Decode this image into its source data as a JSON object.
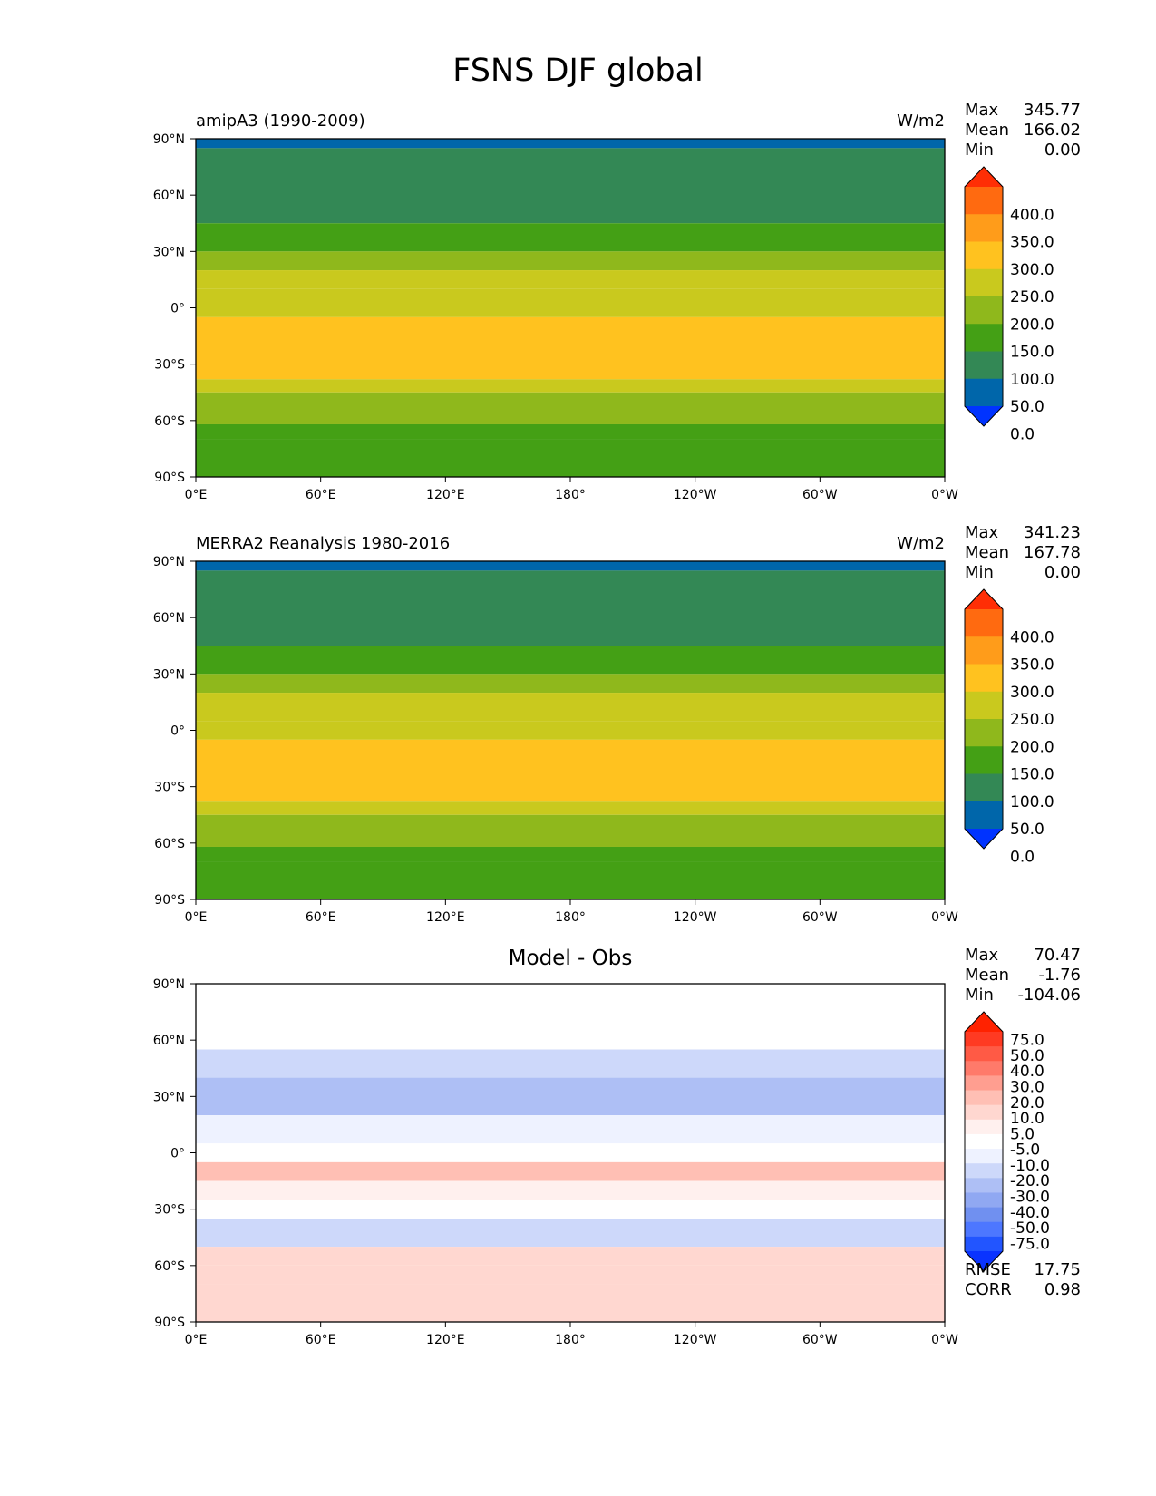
{
  "page_title": "FSNS DJF global",
  "lat_ticks": [
    "90°N",
    "60°N",
    "30°N",
    "0°",
    "30°S",
    "60°S",
    "90°S"
  ],
  "lon_ticks": [
    "0°E",
    "60°E",
    "120°E",
    "180°",
    "120°W",
    "60°W",
    "0°W"
  ],
  "colors": {
    "field_levels": [
      "#0033ff",
      "#0066aa",
      "#338855",
      "#44a015",
      "#8fb81c",
      "#c9c91e",
      "#ffc21f",
      "#ff9c1a",
      "#ff6a10",
      "#ff2e05"
    ],
    "diff_levels": [
      "#0a33ff",
      "#2255ff",
      "#4d77ff",
      "#7090f0",
      "#90a8f2",
      "#aebff5",
      "#cdd8fa",
      "#eef2ff",
      "#ffffff",
      "#fff0ee",
      "#ffd7d0",
      "#ffbfb4",
      "#ff9e90",
      "#ff7a6a",
      "#ff5a45",
      "#ff3a22",
      "#ff2200"
    ]
  },
  "panels": [
    {
      "title_left": "amipA3 (1990-2009)",
      "units": "W/m2",
      "stats": [
        {
          "label": "Max",
          "value": "345.77"
        },
        {
          "label": "Mean",
          "value": "166.02"
        },
        {
          "label": "Min",
          "value": "0.00"
        }
      ],
      "colorbar_labels": [
        "400.0",
        "350.0",
        "300.0",
        "250.0",
        "200.0",
        "150.0",
        "100.0",
        "50.0",
        "0.0"
      ]
    },
    {
      "title_left": "MERRA2 Reanalysis 1980-2016",
      "units": "W/m2",
      "stats": [
        {
          "label": "Max",
          "value": "341.23"
        },
        {
          "label": "Mean",
          "value": "167.78"
        },
        {
          "label": "Min",
          "value": "0.00"
        }
      ],
      "colorbar_labels": [
        "400.0",
        "350.0",
        "300.0",
        "250.0",
        "200.0",
        "150.0",
        "100.0",
        "50.0",
        "0.0"
      ]
    },
    {
      "title_center": "Model - Obs",
      "stats": [
        {
          "label": "Max",
          "value": "70.47"
        },
        {
          "label": "Mean",
          "value": "-1.76"
        },
        {
          "label": "Min",
          "value": "-104.06"
        }
      ],
      "colorbar_labels": [
        "75.0",
        "50.0",
        "40.0",
        "30.0",
        "20.0",
        "10.0",
        "5.0",
        "-5.0",
        "-10.0",
        "-20.0",
        "-30.0",
        "-40.0",
        "-50.0",
        "-75.0"
      ],
      "bottom_stats": [
        {
          "label": "RMSE",
          "value": "17.75"
        },
        {
          "label": "CORR",
          "value": "0.98"
        }
      ]
    }
  ],
  "chart_data": [
    {
      "type": "heatmap",
      "title": "amipA3 (1990-2009)",
      "units": "W/m2",
      "levels": [
        0,
        50,
        100,
        150,
        200,
        250,
        300,
        350,
        400
      ],
      "lat_bands": [
        {
          "lat": [
            85,
            90
          ],
          "value": 0
        },
        {
          "lat": [
            45,
            85
          ],
          "value": 75
        },
        {
          "lat": [
            30,
            45
          ],
          "value": 125
        },
        {
          "lat": [
            20,
            30
          ],
          "value": 175
        },
        {
          "lat": [
            10,
            20
          ],
          "value": 225
        },
        {
          "lat": [
            -5,
            10
          ],
          "value": 225
        },
        {
          "lat": [
            -38,
            -5
          ],
          "value": 275
        },
        {
          "lat": [
            -45,
            -38
          ],
          "value": 225
        },
        {
          "lat": [
            -62,
            -45
          ],
          "value": 175
        },
        {
          "lat": [
            -70,
            -62
          ],
          "value": 125
        },
        {
          "lat": [
            -90,
            -70
          ],
          "value": 125
        }
      ],
      "stats": {
        "max": 345.77,
        "mean": 166.02,
        "min": 0.0
      }
    },
    {
      "type": "heatmap",
      "title": "MERRA2 Reanalysis 1980-2016",
      "units": "W/m2",
      "levels": [
        0,
        50,
        100,
        150,
        200,
        250,
        300,
        350,
        400
      ],
      "lat_bands": [
        {
          "lat": [
            85,
            90
          ],
          "value": 0
        },
        {
          "lat": [
            45,
            85
          ],
          "value": 75
        },
        {
          "lat": [
            30,
            45
          ],
          "value": 125
        },
        {
          "lat": [
            20,
            30
          ],
          "value": 175
        },
        {
          "lat": [
            5,
            20
          ],
          "value": 225
        },
        {
          "lat": [
            -5,
            5
          ],
          "value": 225
        },
        {
          "lat": [
            -38,
            -5
          ],
          "value": 275
        },
        {
          "lat": [
            -45,
            -38
          ],
          "value": 225
        },
        {
          "lat": [
            -62,
            -45
          ],
          "value": 175
        },
        {
          "lat": [
            -70,
            -62
          ],
          "value": 125
        },
        {
          "lat": [
            -90,
            -70
          ],
          "value": 125
        }
      ],
      "stats": {
        "max": 341.23,
        "mean": 167.78,
        "min": 0.0
      }
    },
    {
      "type": "heatmap",
      "title": "Model - Obs",
      "levels": [
        -75,
        -50,
        -40,
        -30,
        -20,
        -10,
        -5,
        5,
        10,
        20,
        30,
        40,
        50,
        75
      ],
      "lat_bands": [
        {
          "lat": [
            55,
            90
          ],
          "value": 0
        },
        {
          "lat": [
            40,
            55
          ],
          "value": -15
        },
        {
          "lat": [
            20,
            40
          ],
          "value": -25
        },
        {
          "lat": [
            5,
            20
          ],
          "value": -10
        },
        {
          "lat": [
            -5,
            5
          ],
          "value": 0
        },
        {
          "lat": [
            -15,
            -5
          ],
          "value": 25
        },
        {
          "lat": [
            -25,
            -15
          ],
          "value": 8
        },
        {
          "lat": [
            -35,
            -25
          ],
          "value": 0
        },
        {
          "lat": [
            -50,
            -35
          ],
          "value": -15
        },
        {
          "lat": [
            -60,
            -50
          ],
          "value": 15
        },
        {
          "lat": [
            -70,
            -60
          ],
          "value": 10
        },
        {
          "lat": [
            -90,
            -70
          ],
          "value": 15
        }
      ],
      "stats": {
        "max": 70.47,
        "mean": -1.76,
        "min": -104.06,
        "rmse": 17.75,
        "corr": 0.98
      }
    }
  ]
}
